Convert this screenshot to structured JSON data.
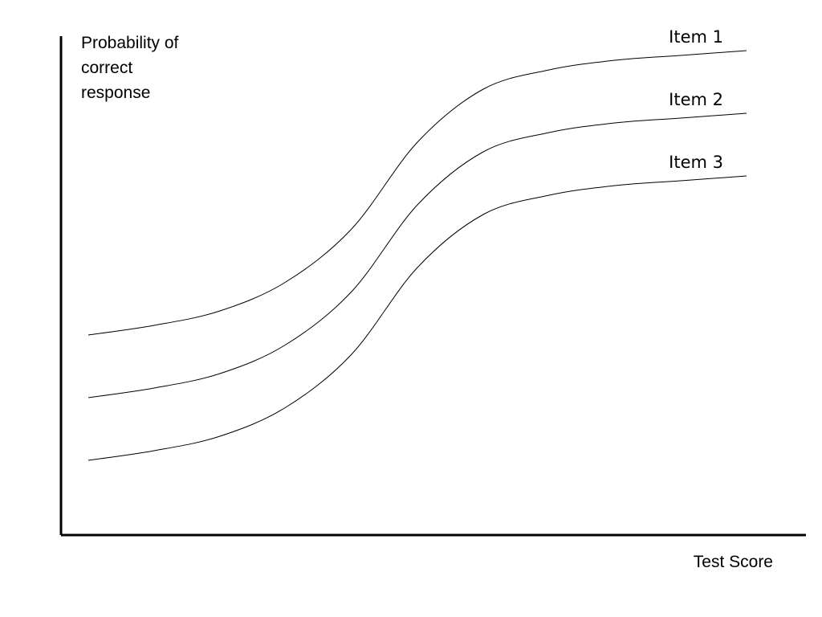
{
  "chart_data": {
    "type": "line",
    "title": "",
    "ylabel_lines": [
      "Probability of",
      "correct",
      "response"
    ],
    "xlabel": "Test Score",
    "grid": false,
    "legend": "labels at right end of each curve",
    "series": [
      {
        "name": "Item 1",
        "x": [
          0,
          10,
          20,
          30,
          40,
          50,
          60,
          70,
          80,
          90,
          100
        ],
        "y": [
          0.4,
          0.42,
          0.45,
          0.51,
          0.62,
          0.8,
          0.91,
          0.95,
          0.97,
          0.98,
          0.99
        ]
      },
      {
        "name": "Item 2",
        "x": [
          0,
          10,
          20,
          30,
          40,
          50,
          60,
          70,
          80,
          90,
          100
        ],
        "y": [
          0.27,
          0.29,
          0.32,
          0.38,
          0.49,
          0.67,
          0.78,
          0.82,
          0.84,
          0.85,
          0.86
        ]
      },
      {
        "name": "Item 3",
        "x": [
          0,
          10,
          20,
          30,
          40,
          50,
          60,
          70,
          80,
          90,
          100
        ],
        "y": [
          0.14,
          0.16,
          0.19,
          0.25,
          0.36,
          0.54,
          0.65,
          0.69,
          0.71,
          0.72,
          0.73
        ]
      }
    ],
    "colors": {
      "line": "#000000",
      "axis": "#000000",
      "background": "#ffffff"
    }
  }
}
